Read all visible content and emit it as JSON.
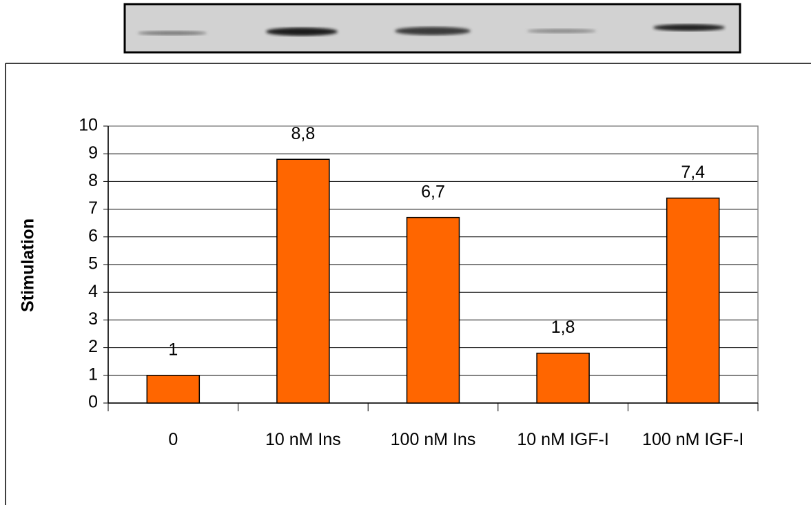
{
  "chart_data": {
    "type": "bar",
    "y_label": "Stimulation",
    "categories": [
      "0",
      "10 nM Ins",
      "100 nM Ins",
      "10 nM IGF-I",
      "100 nM IGF-I"
    ],
    "values": [
      1,
      8.8,
      6.7,
      1.8,
      7.4
    ],
    "value_labels": [
      "1",
      "8,8",
      "6,7",
      "1,8",
      "7,4"
    ],
    "color": "#ff6600",
    "ylim": [
      0,
      10
    ],
    "yticks": [
      0,
      1,
      2,
      3,
      4,
      5,
      6,
      7,
      8,
      9,
      10
    ],
    "grid": true
  }
}
